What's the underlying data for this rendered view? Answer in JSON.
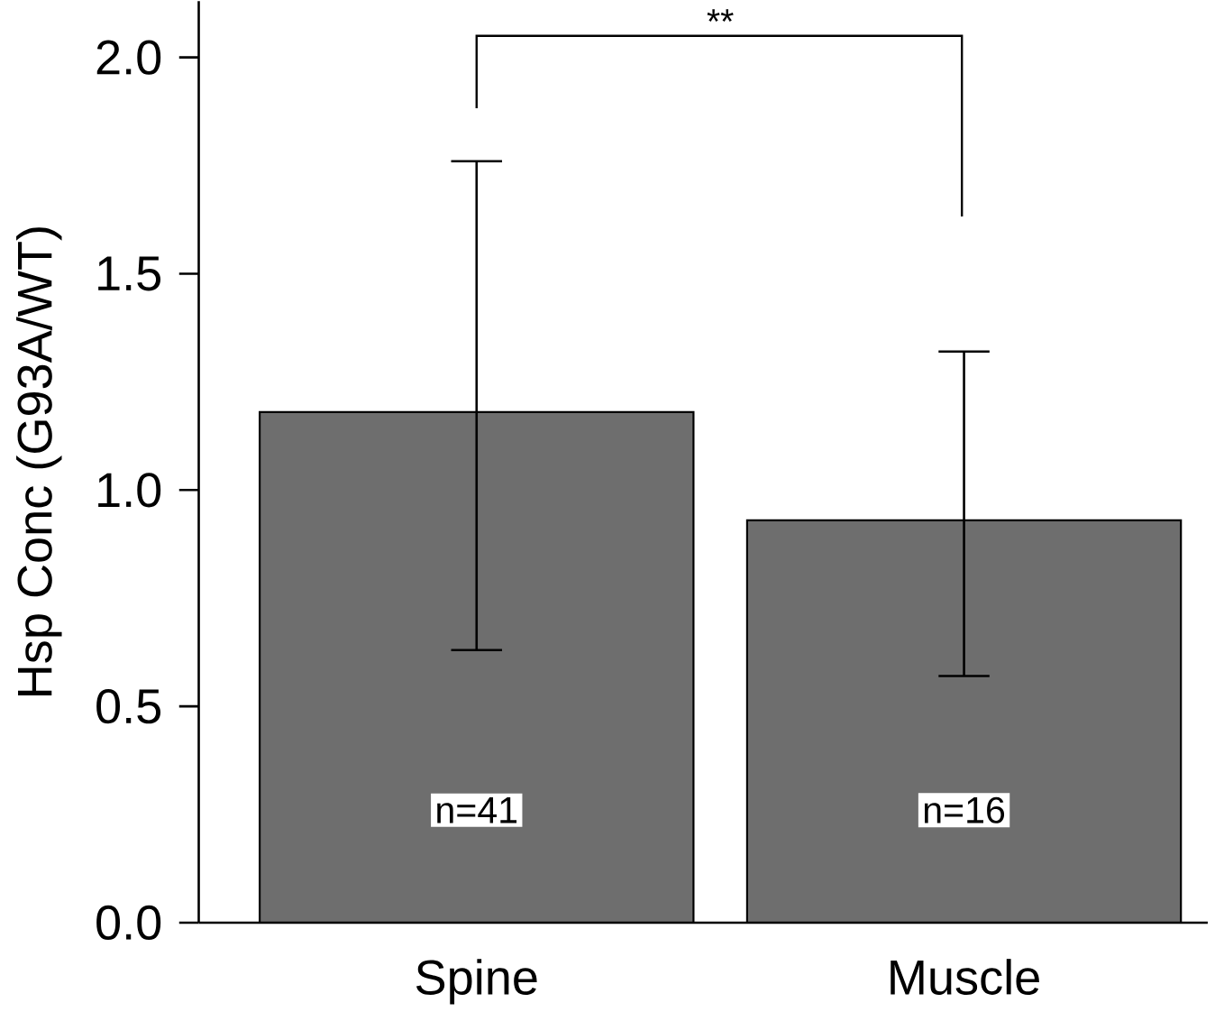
{
  "chart_data": {
    "type": "bar",
    "ylabel": "Hsp Conc (G93A/WT)",
    "categories": [
      "Spine",
      "Muscle"
    ],
    "values": [
      1.18,
      0.93
    ],
    "errors": [
      [
        0.63,
        1.76
      ],
      [
        0.57,
        1.32
      ]
    ],
    "color": "#6e6e6e",
    "ylim": [
      0,
      2.13
    ],
    "yticks": [
      {
        "value": 0,
        "label": "0.0"
      },
      0.5,
      {
        "value": 1,
        "label": "1.0"
      },
      1.5,
      {
        "value": 2,
        "label": "2.0"
      }
    ],
    "annotations": [
      "n=41",
      "n=16",
      "**"
    ]
  }
}
